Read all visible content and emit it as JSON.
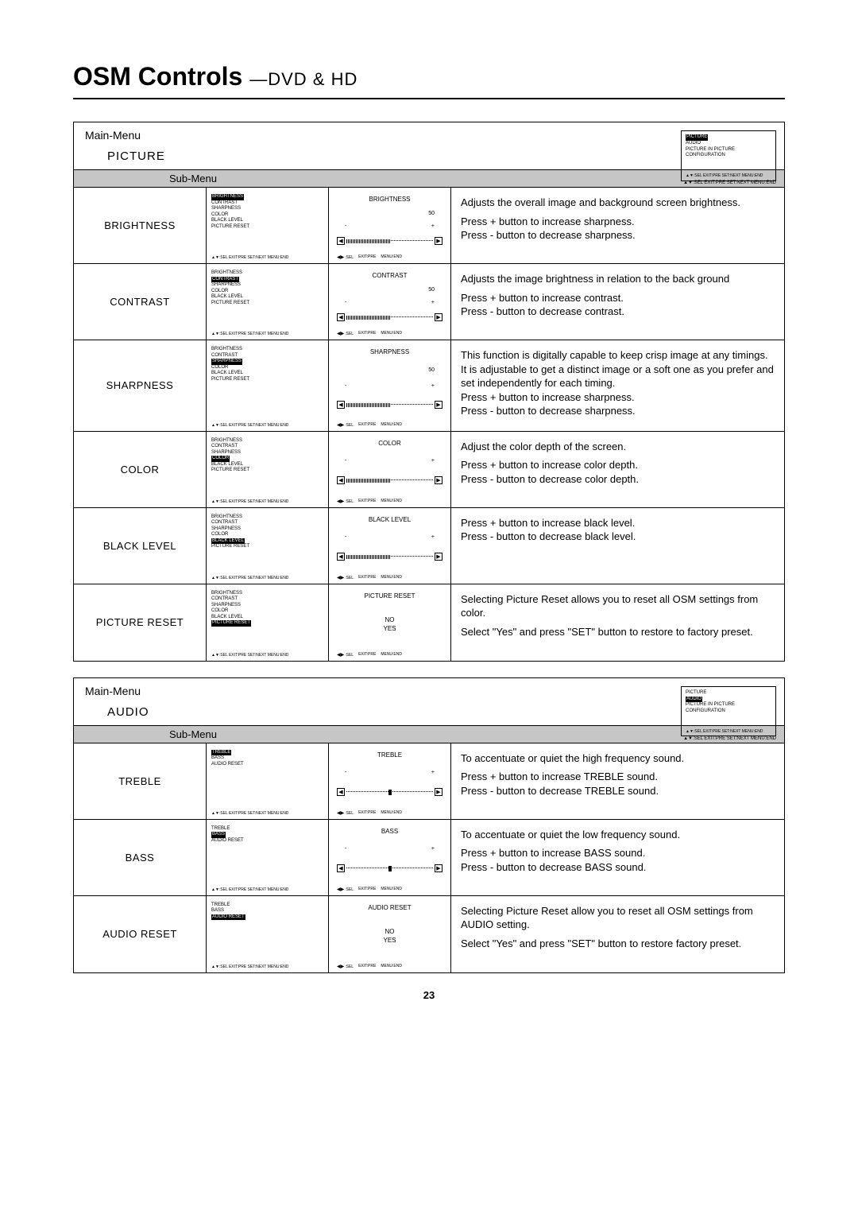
{
  "page": {
    "title_main": "OSM Controls",
    "title_sub": "—DVD & HD",
    "number": "23"
  },
  "labels": {
    "main_menu": "Main-Menu",
    "sub_menu": "Sub-Menu",
    "updown_footer": "▲▼:SEL EXIT:PRE SET:NEXT MENU:END",
    "ctrl_footer_sel": ":SEL",
    "ctrl_footer_exit": "EXIT:PRE",
    "ctrl_footer_menu": "MENU:END"
  },
  "picture_section": {
    "name": "PICTURE",
    "main_menu_items": [
      "PICTURE",
      "AUDIO",
      "PICTURE IN PICTURE",
      "CONFIGURATION"
    ],
    "main_menu_highlight": 0,
    "submenu_items": [
      "BRIGHTNESS",
      "CONTRAST",
      "SHARPNESS",
      "COLOR",
      "BLACK LEVEL",
      "PICTURE RESET"
    ],
    "rows": [
      {
        "name": "BRIGHTNESS",
        "highlight_idx": 0,
        "ctrl_title": "BRIGHTNESS",
        "ctrl_value": "50",
        "type": "slider-half",
        "desc": [
          "Adjusts the overall image and background screen brightness.",
          "Press + button to increase sharpness.\nPress - button to decrease sharpness."
        ]
      },
      {
        "name": "CONTRAST",
        "highlight_idx": 1,
        "ctrl_title": "CONTRAST",
        "ctrl_value": "50",
        "type": "slider-half",
        "desc": [
          "Adjusts the image brightness in relation to the back ground",
          "Press + button to increase contrast.\nPress - button to decrease contrast."
        ]
      },
      {
        "name": "SHARPNESS",
        "highlight_idx": 2,
        "ctrl_title": "SHARPNESS",
        "ctrl_value": "50",
        "type": "slider-half",
        "desc": [
          "This function is digitally capable to keep crisp image at any timings.  It is adjustable to get a distinct image or a soft one as you prefer and set independently for each timing.\nPress + button to increase sharpness.\nPress - button to decrease sharpness."
        ]
      },
      {
        "name": "COLOR",
        "highlight_idx": 3,
        "ctrl_title": "COLOR",
        "ctrl_value": "",
        "type": "slider-half",
        "desc": [
          "Adjust the color depth  of the screen.",
          "Press  + button to increase color depth.\nPress - button to decrease color depth."
        ]
      },
      {
        "name": "BLACK LEVEL",
        "highlight_idx": 4,
        "ctrl_title": "BLACK LEVEL",
        "ctrl_value": "",
        "type": "slider-half",
        "desc": [
          "Press + button to increase black level.\nPress - button to decrease black level."
        ]
      },
      {
        "name": "PICTURE RESET",
        "highlight_idx": 5,
        "ctrl_title": "PICTURE RESET",
        "type": "yesno",
        "no": "NO",
        "yes": "YES",
        "desc": [
          "Selecting Picture Reset allows you to reset all OSM settings from color.",
          "Select \"Yes\" and press \"SET\" button to restore to factory preset."
        ]
      }
    ]
  },
  "audio_section": {
    "name": "AUDIO",
    "main_menu_items": [
      "PICTURE",
      "AUDIO",
      "PICTURE IN PICTURE",
      "CONFIGURATION"
    ],
    "main_menu_highlight": 1,
    "submenu_items": [
      "TREBLE",
      "BASS",
      "AUDIO RESET"
    ],
    "rows": [
      {
        "name": "TREBLE",
        "highlight_idx": 0,
        "ctrl_title": "TREBLE",
        "type": "slider-center",
        "desc": [
          "To accentuate or quiet the high frequency sound.",
          "Press + button to increase TREBLE sound.\nPress - button to decrease TREBLE sound."
        ]
      },
      {
        "name": "BASS",
        "highlight_idx": 1,
        "ctrl_title": "BASS",
        "type": "slider-center",
        "desc": [
          "To accentuate or quiet the low frequency sound.",
          "Press + button to increase BASS sound.\nPress - button to decrease BASS sound."
        ]
      },
      {
        "name": "AUDIO RESET",
        "highlight_idx": 2,
        "ctrl_title": "AUDIO RESET",
        "type": "yesno",
        "no": "NO",
        "yes": "YES",
        "desc": [
          "Selecting Picture Reset allow you to reset all OSM settings from AUDIO setting.",
          "Select \"Yes\" and press \"SET\" button to restore factory preset."
        ]
      }
    ]
  }
}
